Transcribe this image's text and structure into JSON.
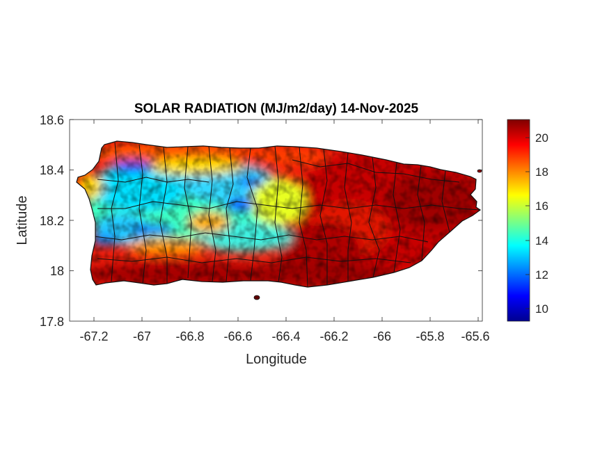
{
  "title": "SOLAR RADIATION (MJ/m2/day) 14-Nov-2025",
  "xlabel": "Longitude",
  "ylabel": "Latitude",
  "xticks": [
    "-67.2",
    "-67",
    "-66.8",
    "-66.6",
    "-66.4",
    "-66.2",
    "-66",
    "-65.8",
    "-65.6"
  ],
  "yticks": [
    "18.6",
    "18.4",
    "18.2",
    "18",
    "17.8"
  ],
  "colorbar_ticks": [
    "20",
    "18",
    "16",
    "14",
    "12",
    "10"
  ],
  "chart_data": {
    "type": "heatmap",
    "title": "SOLAR RADIATION (MJ/m2/day) 14-Nov-2025",
    "xlabel": "Longitude",
    "ylabel": "Latitude",
    "xlim": [
      -67.3,
      -65.58
    ],
    "ylim": [
      17.8,
      18.6
    ],
    "xtick_values": [
      -67.2,
      -67,
      -66.8,
      -66.6,
      -66.4,
      -66.2,
      -66,
      -65.8,
      -65.6
    ],
    "ytick_values": [
      17.8,
      18,
      18.2,
      18.4,
      18.6
    ],
    "colormap": "jet",
    "clim": [
      9.3,
      21.2
    ],
    "colorbar_ticks": [
      10,
      12,
      14,
      16,
      18,
      20
    ],
    "grid": false,
    "colorbar_position": "right",
    "summary": {
      "west_central_interior": "13-16",
      "southwest_coast": "19-21",
      "north_coast_west": "18-19",
      "east_half": "19-21"
    }
  }
}
